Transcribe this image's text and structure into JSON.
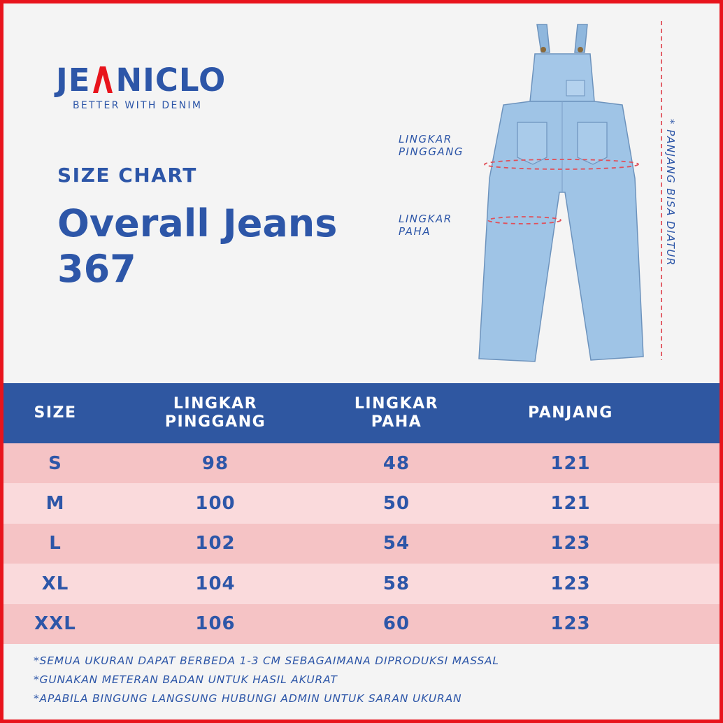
{
  "brand": {
    "name_left": "JE",
    "name_right": "NICLO",
    "tagline": "BETTER WITH DENIM"
  },
  "header": {
    "subtitle": "SIZE CHART",
    "title_line1": "Overall Jeans",
    "title_line2": "367"
  },
  "diagram": {
    "label_waist_1": "LINGKAR",
    "label_waist_2": "PINGGANG",
    "label_thigh_1": "LINGKAR",
    "label_thigh_2": "PAHA",
    "label_length": "* PANJANG BISA DIATUR"
  },
  "table": {
    "headers": {
      "size": "SIZE",
      "waist_1": "LINGKAR",
      "waist_2": "PINGGANG",
      "thigh_1": "LINGKAR",
      "thigh_2": "PAHA",
      "length": "PANJANG"
    },
    "rows": [
      {
        "size": "S",
        "waist": "98",
        "thigh": "48",
        "length": "121"
      },
      {
        "size": "M",
        "waist": "100",
        "thigh": "50",
        "length": "121"
      },
      {
        "size": "L",
        "waist": "102",
        "thigh": "54",
        "length": "123"
      },
      {
        "size": "XL",
        "waist": "104",
        "thigh": "58",
        "length": "123"
      },
      {
        "size": "XXL",
        "waist": "106",
        "thigh": "60",
        "length": "123"
      }
    ]
  },
  "notes": [
    "*SEMUA UKURAN DAPAT BERBEDA 1-3 CM SEBAGAIMANA DIPRODUKSI MASSAL",
    "*GUNAKAN METERAN BADAN UNTUK HASIL AKURAT",
    "*APABILA BINGUNG LANGSUNG HUBUNGI ADMIN UNTUK SARAN UKURAN"
  ],
  "colors": {
    "brand_blue": "#2d56a8",
    "header_blue": "#2f57a1",
    "row_dark": "#f5c3c5",
    "row_light": "#fadadc",
    "accent_red": "#e8141c",
    "measure_line": "#e0505a",
    "denim": "#9fc4e6"
  }
}
